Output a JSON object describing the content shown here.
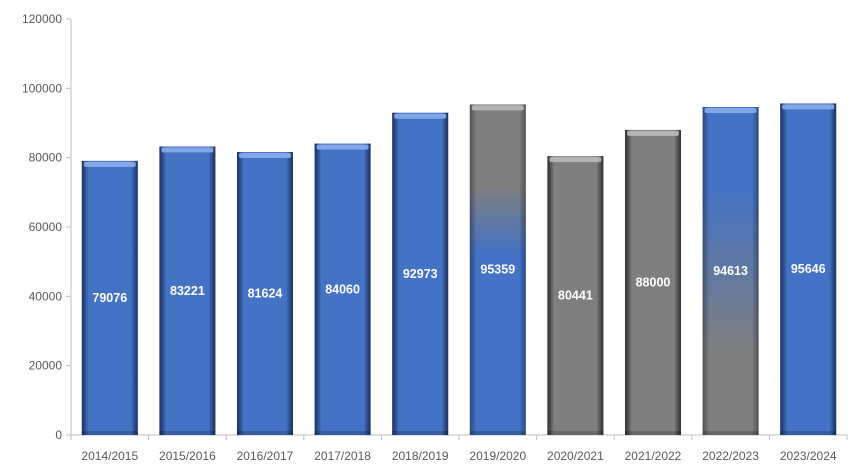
{
  "chart_data": {
    "type": "bar",
    "title": "",
    "xlabel": "",
    "ylabel": "",
    "ylim": [
      0,
      120000
    ],
    "yticks": [
      0,
      20000,
      40000,
      60000,
      80000,
      100000,
      120000
    ],
    "grid": false,
    "categories": [
      "2014/2015",
      "2015/2016",
      "2016/2017",
      "2017/2018",
      "2018/2019",
      "2019/2020",
      "2020/2021",
      "2021/2022",
      "2022/2023",
      "2023/2024"
    ],
    "values": [
      79076,
      83221,
      81624,
      84060,
      92973,
      95359,
      80441,
      88000,
      94613,
      95646
    ],
    "bar_styles": [
      "blue",
      "blue",
      "blue",
      "blue",
      "blue",
      "gray-to-blue",
      "gray",
      "gray",
      "blue-to-gray",
      "blue"
    ],
    "colors": {
      "blue": "#4472C4",
      "blue_dark": "#2F559E",
      "blue_light": "#8FB0EE",
      "gray": "#7F7F7F",
      "gray_dark": "#505050",
      "gray_light": "#BDBDBD",
      "axis": "#BFBFBF",
      "tick_text": "#595959",
      "label_text": "#FFFFFF"
    }
  }
}
